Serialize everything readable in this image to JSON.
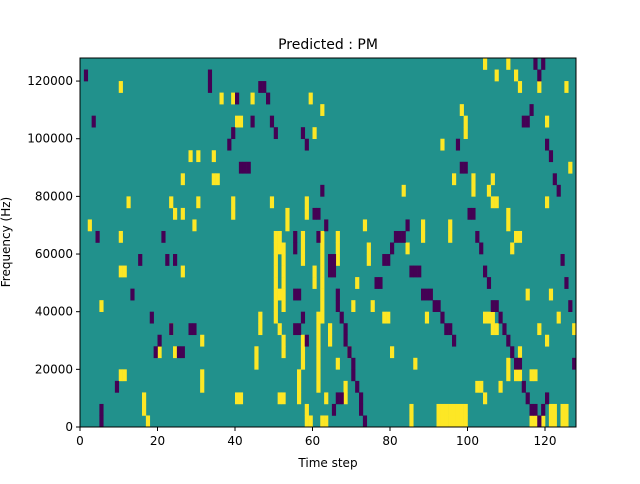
{
  "chart_data": {
    "type": "heatmap",
    "title": "Predicted : PM",
    "xlabel": "Time step",
    "ylabel": "Frequency (Hz)",
    "xlim": [
      0,
      128
    ],
    "ylim": [
      0,
      128000
    ],
    "x_ticks": [
      0,
      20,
      40,
      60,
      80,
      100,
      120
    ],
    "y_ticks": [
      0,
      20000,
      40000,
      60000,
      80000,
      100000,
      120000
    ],
    "x_tick_labels": [
      "0",
      "20",
      "40",
      "60",
      "80",
      "100",
      "120"
    ],
    "y_tick_labels": [
      "0",
      "20000",
      "40000",
      "60000",
      "80000",
      "100000",
      "120000"
    ],
    "grid": false,
    "legend": "none",
    "colormap": "viridis",
    "levels": [
      -1,
      0,
      1
    ],
    "level_colors": {
      "-1": "#440154",
      "0": "#21918c",
      "1": "#fde725"
    },
    "background_level": 0,
    "cell_height_hz": 4000,
    "cells_positive": [
      [
        10,
        116000
      ],
      [
        16,
        8000
      ],
      [
        16,
        4000
      ],
      [
        17,
        0
      ],
      [
        36,
        112000
      ],
      [
        39,
        112000
      ],
      [
        44,
        112000
      ],
      [
        28,
        92000
      ],
      [
        30,
        92000
      ],
      [
        34,
        92000
      ],
      [
        40,
        104000
      ],
      [
        41,
        104000
      ],
      [
        26,
        84000
      ],
      [
        34,
        84000
      ],
      [
        35,
        84000
      ],
      [
        12,
        76000
      ],
      [
        23,
        76000
      ],
      [
        30,
        76000
      ],
      [
        2,
        68000
      ],
      [
        24,
        72000
      ],
      [
        26,
        72000
      ],
      [
        10,
        64000
      ],
      [
        29,
        68000
      ],
      [
        39,
        72000
      ],
      [
        26,
        52000
      ],
      [
        39,
        76000
      ],
      [
        49,
        76000
      ],
      [
        10,
        52000
      ],
      [
        11,
        52000
      ],
      [
        5,
        40000
      ],
      [
        23,
        32000
      ],
      [
        31,
        28000
      ],
      [
        10,
        16000
      ],
      [
        11,
        16000
      ],
      [
        20,
        24000
      ],
      [
        24,
        24000
      ],
      [
        31,
        12000
      ],
      [
        31,
        16000
      ],
      [
        45,
        24000
      ],
      [
        45,
        20000
      ],
      [
        40,
        8000
      ],
      [
        41,
        8000
      ],
      [
        51,
        8000
      ],
      [
        52,
        8000
      ],
      [
        46,
        36000
      ],
      [
        46,
        32000
      ],
      [
        50,
        64000
      ],
      [
        51,
        64000
      ],
      [
        50,
        60000
      ],
      [
        51,
        60000
      ],
      [
        50,
        56000
      ],
      [
        50,
        52000
      ],
      [
        50,
        48000
      ],
      [
        50,
        44000
      ],
      [
        51,
        44000
      ],
      [
        50,
        40000
      ],
      [
        50,
        36000
      ],
      [
        51,
        32000
      ],
      [
        52,
        60000
      ],
      [
        52,
        56000
      ],
      [
        52,
        52000
      ],
      [
        52,
        48000
      ],
      [
        52,
        44000
      ],
      [
        52,
        40000
      ],
      [
        52,
        28000
      ],
      [
        52,
        24000
      ],
      [
        53,
        68000
      ],
      [
        53,
        72000
      ],
      [
        56,
        16000
      ],
      [
        56,
        12000
      ],
      [
        56,
        8000
      ],
      [
        57,
        64000
      ],
      [
        57,
        60000
      ],
      [
        57,
        56000
      ],
      [
        57,
        20000
      ],
      [
        57,
        24000
      ],
      [
        57,
        28000
      ],
      [
        58,
        4000
      ],
      [
        58,
        0
      ],
      [
        59,
        0
      ],
      [
        58,
        76000
      ],
      [
        58,
        72000
      ],
      [
        60,
        52000
      ],
      [
        60,
        48000
      ],
      [
        61,
        28000
      ],
      [
        61,
        24000
      ],
      [
        61,
        36000
      ],
      [
        61,
        32000
      ],
      [
        62,
        56000
      ],
      [
        62,
        52000
      ],
      [
        62,
        48000
      ],
      [
        62,
        44000
      ],
      [
        62,
        40000
      ],
      [
        62,
        36000
      ],
      [
        61,
        20000
      ],
      [
        61,
        16000
      ],
      [
        61,
        12000
      ],
      [
        62,
        64000
      ],
      [
        62,
        60000
      ],
      [
        62,
        0
      ],
      [
        63,
        0
      ],
      [
        63,
        8000
      ],
      [
        64,
        28000
      ],
      [
        64,
        32000
      ],
      [
        66,
        20000
      ],
      [
        59,
        112000
      ],
      [
        60,
        100000
      ],
      [
        62,
        108000
      ],
      [
        66,
        64000
      ],
      [
        66,
        60000
      ],
      [
        66,
        56000
      ],
      [
        68,
        8000
      ],
      [
        68,
        12000
      ],
      [
        69,
        24000
      ],
      [
        70,
        40000
      ],
      [
        73,
        68000
      ],
      [
        75,
        40000
      ],
      [
        71,
        48000
      ],
      [
        74,
        56000
      ],
      [
        74,
        60000
      ],
      [
        78,
        36000
      ],
      [
        79,
        36000
      ],
      [
        80,
        24000
      ],
      [
        83,
        80000
      ],
      [
        84,
        60000
      ],
      [
        85,
        0
      ],
      [
        85,
        4000
      ],
      [
        86,
        20000
      ],
      [
        88,
        68000
      ],
      [
        88,
        64000
      ],
      [
        89,
        36000
      ],
      [
        93,
        96000
      ],
      [
        96,
        84000
      ],
      [
        95,
        68000
      ],
      [
        95,
        64000
      ],
      [
        98,
        108000
      ],
      [
        99,
        104000
      ],
      [
        99,
        100000
      ],
      [
        101,
        84000
      ],
      [
        101,
        80000
      ],
      [
        106,
        36000
      ],
      [
        106,
        32000
      ],
      [
        110,
        20000
      ],
      [
        110,
        16000
      ],
      [
        113,
        24000
      ],
      [
        92,
        4000
      ],
      [
        93,
        4000
      ],
      [
        94,
        4000
      ],
      [
        95,
        4000
      ],
      [
        96,
        4000
      ],
      [
        97,
        4000
      ],
      [
        98,
        4000
      ],
      [
        99,
        4000
      ],
      [
        92,
        0
      ],
      [
        93,
        0
      ],
      [
        94,
        0
      ],
      [
        95,
        0
      ],
      [
        96,
        0
      ],
      [
        97,
        0
      ],
      [
        98,
        0
      ],
      [
        99,
        0
      ],
      [
        104,
        8000
      ],
      [
        108,
        12000
      ],
      [
        112,
        16000
      ],
      [
        113,
        16000
      ],
      [
        106,
        76000
      ],
      [
        107,
        76000
      ],
      [
        110,
        72000
      ],
      [
        110,
        68000
      ],
      [
        112,
        64000
      ],
      [
        113,
        64000
      ],
      [
        116,
        16000
      ],
      [
        117,
        16000
      ],
      [
        118,
        32000
      ],
      [
        120,
        28000
      ],
      [
        123,
        36000
      ],
      [
        127,
        32000
      ],
      [
        107,
        120000
      ],
      [
        112,
        120000
      ],
      [
        113,
        116000
      ],
      [
        118,
        116000
      ],
      [
        104,
        124000
      ],
      [
        110,
        124000
      ],
      [
        120,
        104000
      ],
      [
        125,
        116000
      ],
      [
        126,
        88000
      ],
      [
        120,
        76000
      ],
      [
        121,
        44000
      ],
      [
        124,
        4000
      ],
      [
        125,
        4000
      ],
      [
        124,
        0
      ],
      [
        125,
        0
      ],
      [
        121,
        4000
      ],
      [
        122,
        4000
      ],
      [
        121,
        0
      ],
      [
        122,
        0
      ],
      [
        116,
        0
      ],
      [
        117,
        0
      ],
      [
        118,
        0
      ],
      [
        119,
        0
      ],
      [
        105,
        80000
      ],
      [
        106,
        84000
      ],
      [
        111,
        60000
      ],
      [
        104,
        36000
      ],
      [
        105,
        36000
      ],
      [
        107,
        32000
      ],
      [
        102,
        12000
      ],
      [
        103,
        12000
      ],
      [
        115,
        44000
      ]
    ],
    "cells_negative": [
      [
        1,
        120000
      ],
      [
        3,
        104000
      ],
      [
        4,
        64000
      ],
      [
        5,
        0
      ],
      [
        5,
        4000
      ],
      [
        9,
        12000
      ],
      [
        13,
        44000
      ],
      [
        15,
        56000
      ],
      [
        18,
        36000
      ],
      [
        19,
        24000
      ],
      [
        20,
        28000
      ],
      [
        21,
        64000
      ],
      [
        22,
        56000
      ],
      [
        23,
        32000
      ],
      [
        24,
        56000
      ],
      [
        25,
        24000
      ],
      [
        26,
        24000
      ],
      [
        28,
        32000
      ],
      [
        29,
        32000
      ],
      [
        33,
        120000
      ],
      [
        33,
        116000
      ],
      [
        38,
        96000
      ],
      [
        39,
        100000
      ],
      [
        40,
        112000
      ],
      [
        41,
        88000
      ],
      [
        42,
        88000
      ],
      [
        43,
        88000
      ],
      [
        44,
        104000
      ],
      [
        46,
        116000
      ],
      [
        47,
        116000
      ],
      [
        48,
        112000
      ],
      [
        49,
        104000
      ],
      [
        50,
        100000
      ],
      [
        57,
        100000
      ],
      [
        58,
        96000
      ],
      [
        60,
        72000
      ],
      [
        61,
        72000
      ],
      [
        62,
        80000
      ],
      [
        63,
        68000
      ],
      [
        64,
        52000
      ],
      [
        65,
        52000
      ],
      [
        66,
        44000
      ],
      [
        66,
        40000
      ],
      [
        67,
        36000
      ],
      [
        68,
        32000
      ],
      [
        68,
        28000
      ],
      [
        69,
        24000
      ],
      [
        70,
        20000
      ],
      [
        70,
        16000
      ],
      [
        71,
        12000
      ],
      [
        72,
        8000
      ],
      [
        72,
        4000
      ],
      [
        73,
        0
      ],
      [
        65,
        4000
      ],
      [
        66,
        8000
      ],
      [
        67,
        8000
      ],
      [
        55,
        32000
      ],
      [
        56,
        32000
      ],
      [
        57,
        36000
      ],
      [
        58,
        28000
      ],
      [
        55,
        44000
      ],
      [
        56,
        44000
      ],
      [
        55,
        60000
      ],
      [
        55,
        64000
      ],
      [
        61,
        64000
      ],
      [
        64,
        56000
      ],
      [
        65,
        56000
      ],
      [
        76,
        48000
      ],
      [
        77,
        48000
      ],
      [
        78,
        56000
      ],
      [
        79,
        56000
      ],
      [
        80,
        60000
      ],
      [
        81,
        64000
      ],
      [
        82,
        64000
      ],
      [
        83,
        64000
      ],
      [
        84,
        68000
      ],
      [
        85,
        52000
      ],
      [
        86,
        52000
      ],
      [
        87,
        52000
      ],
      [
        88,
        44000
      ],
      [
        89,
        44000
      ],
      [
        90,
        44000
      ],
      [
        91,
        40000
      ],
      [
        92,
        40000
      ],
      [
        93,
        36000
      ],
      [
        94,
        32000
      ],
      [
        95,
        32000
      ],
      [
        96,
        28000
      ],
      [
        97,
        96000
      ],
      [
        98,
        88000
      ],
      [
        99,
        88000
      ],
      [
        100,
        72000
      ],
      [
        101,
        72000
      ],
      [
        102,
        64000
      ],
      [
        103,
        60000
      ],
      [
        104,
        52000
      ],
      [
        105,
        48000
      ],
      [
        106,
        40000
      ],
      [
        107,
        40000
      ],
      [
        108,
        36000
      ],
      [
        109,
        32000
      ],
      [
        110,
        28000
      ],
      [
        111,
        24000
      ],
      [
        112,
        20000
      ],
      [
        113,
        20000
      ],
      [
        114,
        12000
      ],
      [
        115,
        8000
      ],
      [
        116,
        4000
      ],
      [
        117,
        4000
      ],
      [
        118,
        0
      ],
      [
        119,
        4000
      ],
      [
        120,
        8000
      ],
      [
        114,
        104000
      ],
      [
        115,
        104000
      ],
      [
        116,
        108000
      ],
      [
        117,
        124000
      ],
      [
        118,
        120000
      ],
      [
        119,
        124000
      ],
      [
        120,
        96000
      ],
      [
        121,
        92000
      ],
      [
        122,
        84000
      ],
      [
        123,
        80000
      ],
      [
        124,
        56000
      ],
      [
        125,
        48000
      ],
      [
        126,
        40000
      ],
      [
        127,
        20000
      ]
    ]
  }
}
